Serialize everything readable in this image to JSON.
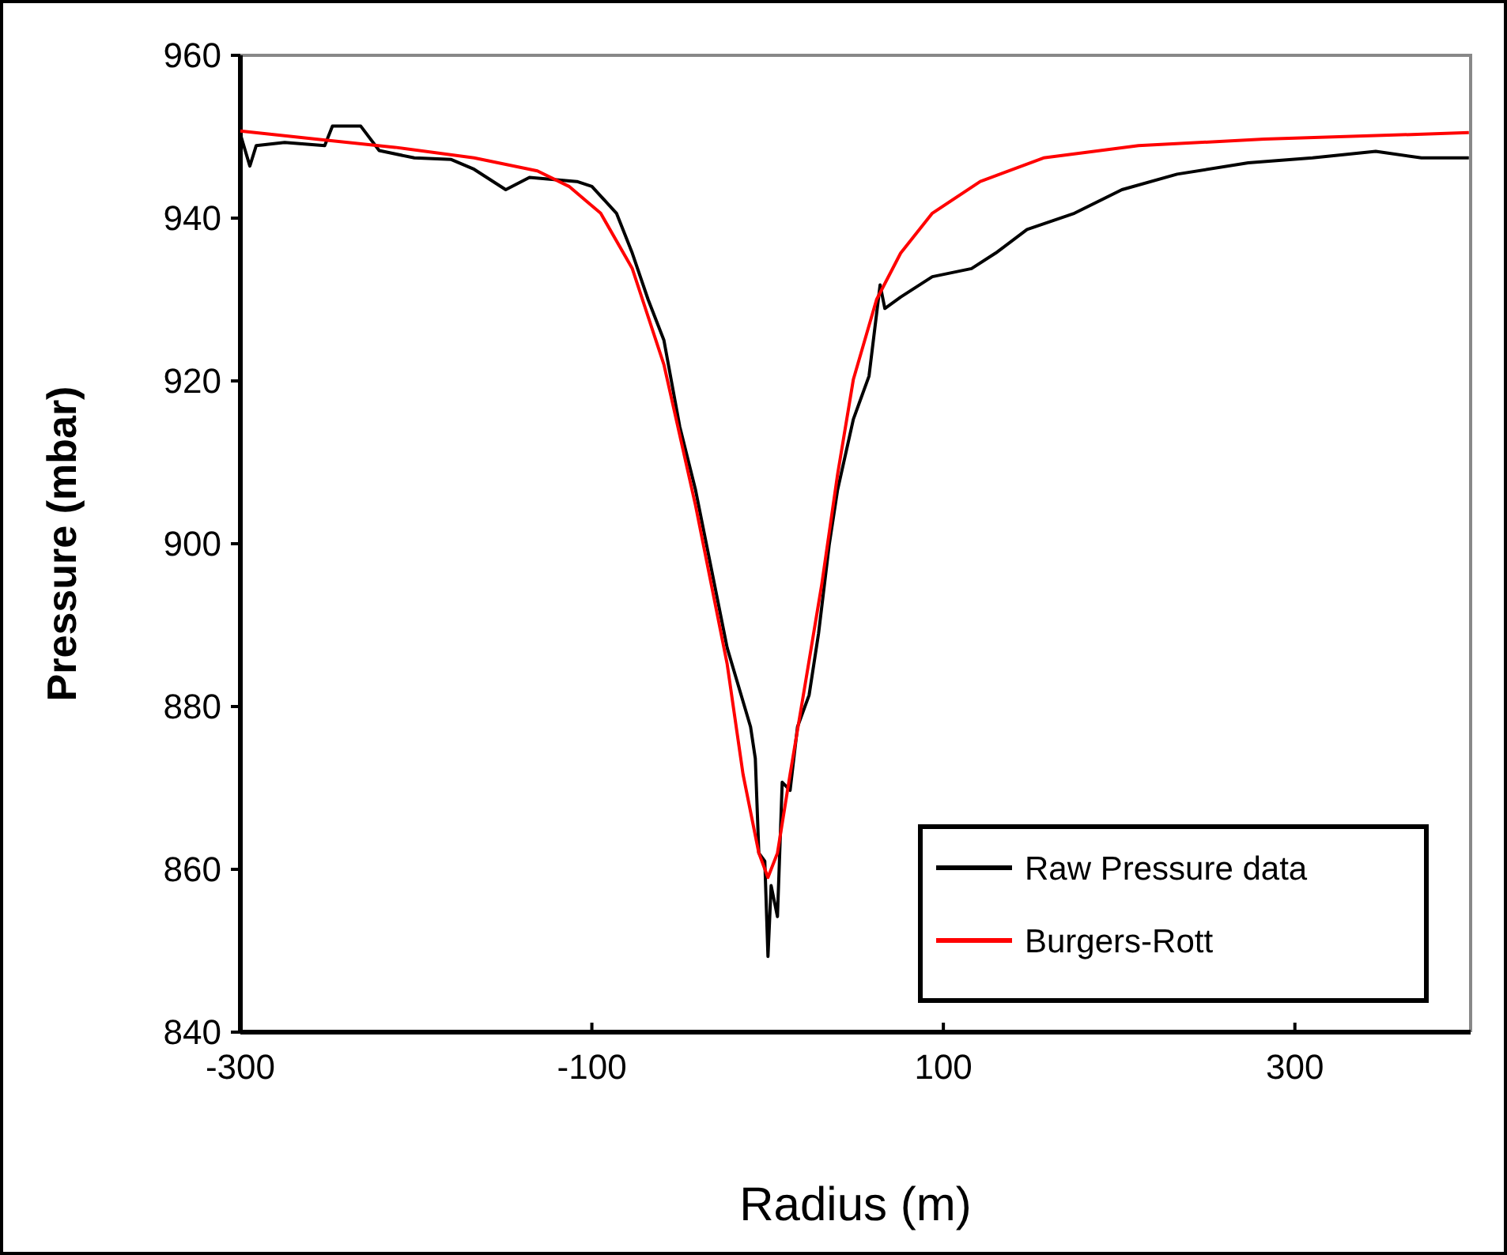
{
  "chart_data": {
    "type": "line",
    "xlabel": "Radius (m)",
    "ylabel": "Pressure (mbar)",
    "xlim": [
      -300,
      400
    ],
    "xticks": [
      -300,
      -100,
      100,
      300
    ],
    "ylim": [
      840,
      960
    ],
    "yticks": [
      840,
      860,
      880,
      900,
      920,
      940,
      960
    ],
    "grid": false,
    "legend": "bottom right",
    "marker": "none",
    "line_style": "solid",
    "series": [
      {
        "name": "Raw Pressure data",
        "color": "#000000",
        "x": [
          -300,
          -294.6,
          -291,
          -274.8,
          -252,
          -247.6,
          -231.5,
          -221,
          -201,
          -180,
          -167,
          -149,
          -135.5,
          -108.5,
          -100,
          -86,
          -77,
          -68,
          -59,
          -50,
          -41,
          -32,
          -23,
          -9.7,
          -7,
          -5,
          -1.6,
          0.2,
          2,
          5.6,
          8.3,
          12.8,
          17,
          23.6,
          29,
          35,
          39.8,
          48.8,
          57.7,
          64,
          66.7,
          75.7,
          93.7,
          116,
          129.7,
          147.6,
          174.6,
          201.6,
          233,
          273.5,
          310,
          346,
          372,
          399
        ],
        "values": [
          950.3,
          946.4,
          948.9,
          949.3,
          948.9,
          951.3,
          951.3,
          948.3,
          947.4,
          947.2,
          946,
          943.5,
          945,
          944.5,
          943.9,
          940.6,
          935.7,
          930,
          925,
          914.4,
          906.6,
          896.9,
          887.2,
          877.5,
          873.6,
          862,
          861,
          849.3,
          858,
          854.2,
          870.7,
          869.7,
          877.5,
          881.4,
          889,
          899.8,
          906.6,
          915.3,
          920.6,
          931.8,
          928.9,
          930.3,
          932.8,
          933.8,
          935.7,
          938.6,
          940.6,
          943.5,
          945.4,
          946.8,
          947.4,
          948.2,
          947.4,
          947.4
        ]
      },
      {
        "name": "Burgers-Rott",
        "color": "#ff0000",
        "x": [
          -300,
          -257,
          -212,
          -167,
          -131,
          -113,
          -95,
          -77,
          -59,
          -41,
          -23,
          -14,
          -5,
          0.2,
          5.6,
          12.8,
          21.8,
          30.8,
          39.8,
          48.8,
          62,
          75.7,
          93.7,
          121,
          157,
          211,
          282.5,
          399
        ],
        "values": [
          950.7,
          949.7,
          948.7,
          947.4,
          945.8,
          943.9,
          940.6,
          933.8,
          922,
          904.7,
          885.2,
          871.7,
          862,
          859,
          862,
          871.7,
          883.3,
          895,
          908.5,
          920.2,
          930,
          935.7,
          940.6,
          944.5,
          947.4,
          948.9,
          949.7,
          950.5
        ]
      }
    ]
  }
}
